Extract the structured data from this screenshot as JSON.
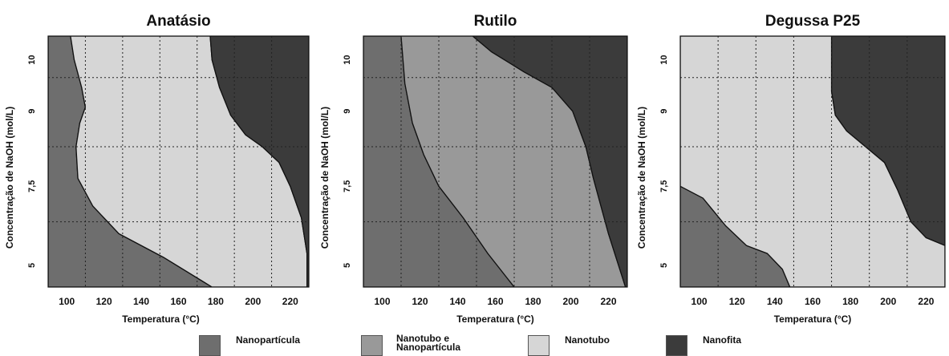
{
  "colors": {
    "Nanopartícula": "#6e6e6e",
    "Nanotubo e Nanopartícula": "#999999",
    "Nanotubo": "#d6d6d6",
    "Nanofita": "#3b3b3b"
  },
  "chart_data": [
    {
      "type": "area",
      "title": "Anatásio",
      "xlabel": "Temperatura (°C)",
      "ylabel": "Concentração de NaOH (mol/L)",
      "x_ticks": [
        "100",
        "120",
        "140",
        "160",
        "180",
        "200",
        "220"
      ],
      "y_ticks": [
        "5",
        "7,5",
        "9",
        "10"
      ],
      "xlim": [
        90,
        230
      ],
      "ylim": [
        4.45,
        10.8
      ],
      "grid": true,
      "regions": [
        {
          "phase": "Nanopartícula",
          "polygon": [
            [
              90,
              4.45
            ],
            [
              178,
              4.45
            ],
            [
              152,
              5.2
            ],
            [
              128,
              5.8
            ],
            [
              114,
              6.5
            ],
            [
              106,
              7.2
            ],
            [
              105,
              8.0
            ],
            [
              107,
              8.6
            ],
            [
              110,
              9.0
            ],
            [
              108,
              9.5
            ],
            [
              104,
              10.2
            ],
            [
              102,
              10.8
            ],
            [
              90,
              10.8
            ]
          ]
        },
        {
          "phase": "Nanotubo",
          "polygon": [
            [
              178,
              4.45
            ],
            [
              229,
              4.45
            ],
            [
              229,
              5.3
            ],
            [
              226,
              6.2
            ],
            [
              220,
              7.0
            ],
            [
              214,
              7.6
            ],
            [
              205,
              8.0
            ],
            [
              196,
              8.3
            ],
            [
              188,
              8.8
            ],
            [
              182,
              9.5
            ],
            [
              178,
              10.2
            ],
            [
              177,
              10.8
            ],
            [
              102,
              10.8
            ],
            [
              104,
              10.2
            ],
            [
              108,
              9.5
            ],
            [
              110,
              9.0
            ],
            [
              107,
              8.6
            ],
            [
              105,
              8.0
            ],
            [
              106,
              7.2
            ],
            [
              114,
              6.5
            ],
            [
              128,
              5.8
            ],
            [
              152,
              5.2
            ]
          ]
        },
        {
          "phase": "Nanofita",
          "polygon": [
            [
              229,
              4.45
            ],
            [
              230,
              4.45
            ],
            [
              230,
              10.8
            ],
            [
              177,
              10.8
            ],
            [
              178,
              10.2
            ],
            [
              182,
              9.5
            ],
            [
              188,
              8.8
            ],
            [
              196,
              8.3
            ],
            [
              205,
              8.0
            ],
            [
              214,
              7.6
            ],
            [
              220,
              7.0
            ],
            [
              226,
              6.2
            ],
            [
              229,
              5.3
            ]
          ]
        }
      ]
    },
    {
      "type": "area",
      "title": "Rutilo",
      "xlabel": "Temperatura (°C)",
      "ylabel": "Concentração de NaOH (mol/L)",
      "x_ticks": [
        "100",
        "120",
        "140",
        "160",
        "180",
        "200",
        "220"
      ],
      "y_ticks": [
        "5",
        "7,5",
        "9",
        "10"
      ],
      "xlim": [
        90,
        230
      ],
      "ylim": [
        4.45,
        10.8
      ],
      "grid": true,
      "regions": [
        {
          "phase": "Nanopartícula",
          "polygon": [
            [
              90,
              4.45
            ],
            [
              170,
              4.45
            ],
            [
              156,
              5.3
            ],
            [
              143,
              6.2
            ],
            [
              130,
              7.0
            ],
            [
              122,
              7.8
            ],
            [
              116,
              8.6
            ],
            [
              112,
              9.6
            ],
            [
              110,
              10.8
            ],
            [
              90,
              10.8
            ]
          ]
        },
        {
          "phase": "Nanotubo e Nanopartícula",
          "polygon": [
            [
              170,
              4.45
            ],
            [
              229,
              4.45
            ],
            [
              220,
              5.8
            ],
            [
              212,
              7.2
            ],
            [
              208,
              8.0
            ],
            [
              201,
              8.9
            ],
            [
              190,
              9.5
            ],
            [
              175,
              9.9
            ],
            [
              158,
              10.4
            ],
            [
              148,
              10.8
            ],
            [
              110,
              10.8
            ],
            [
              112,
              9.6
            ],
            [
              116,
              8.6
            ],
            [
              122,
              7.8
            ],
            [
              130,
              7.0
            ],
            [
              143,
              6.2
            ],
            [
              156,
              5.3
            ]
          ]
        },
        {
          "phase": "Nanofita",
          "polygon": [
            [
              229,
              4.45
            ],
            [
              230,
              4.45
            ],
            [
              230,
              10.8
            ],
            [
              148,
              10.8
            ],
            [
              158,
              10.4
            ],
            [
              175,
              9.9
            ],
            [
              190,
              9.5
            ],
            [
              201,
              8.9
            ],
            [
              208,
              8.0
            ],
            [
              212,
              7.2
            ],
            [
              220,
              5.8
            ]
          ]
        }
      ]
    },
    {
      "type": "area",
      "title": "Degussa P25",
      "xlabel": "Temperatura (°C)",
      "ylabel": "Concentração de NaOH (mol/L)",
      "x_ticks": [
        "100",
        "120",
        "140",
        "160",
        "180",
        "200",
        "220"
      ],
      "y_ticks": [
        "5",
        "7,5",
        "9",
        "10"
      ],
      "xlim": [
        90,
        230
      ],
      "ylim": [
        4.45,
        10.8
      ],
      "grid": true,
      "regions": [
        {
          "phase": "Nanopartícula",
          "polygon": [
            [
              90,
              4.45
            ],
            [
              148,
              4.45
            ],
            [
              144,
              4.9
            ],
            [
              136,
              5.3
            ],
            [
              125,
              5.5
            ],
            [
              114,
              6.0
            ],
            [
              102,
              6.7
            ],
            [
              90,
              7.0
            ]
          ]
        },
        {
          "phase": "Nanotubo",
          "polygon": [
            [
              90,
              7.0
            ],
            [
              102,
              6.7
            ],
            [
              114,
              6.0
            ],
            [
              125,
              5.5
            ],
            [
              136,
              5.3
            ],
            [
              144,
              4.9
            ],
            [
              148,
              4.45
            ],
            [
              230,
              4.45
            ],
            [
              230,
              5.5
            ],
            [
              220,
              5.7
            ],
            [
              212,
              6.1
            ],
            [
              205,
              6.9
            ],
            [
              198,
              7.6
            ],
            [
              188,
              8.0
            ],
            [
              178,
              8.4
            ],
            [
              172,
              8.8
            ],
            [
              170,
              9.4
            ],
            [
              170,
              10.8
            ],
            [
              90,
              10.8
            ]
          ]
        },
        {
          "phase": "Nanofita",
          "polygon": [
            [
              170,
              10.8
            ],
            [
              170,
              9.4
            ],
            [
              172,
              8.8
            ],
            [
              178,
              8.4
            ],
            [
              188,
              8.0
            ],
            [
              198,
              7.6
            ],
            [
              205,
              6.9
            ],
            [
              212,
              6.1
            ],
            [
              220,
              5.7
            ],
            [
              230,
              5.5
            ],
            [
              230,
              10.8
            ]
          ]
        }
      ]
    }
  ],
  "legend": [
    {
      "label": "Nanopartícula",
      "color_key": "Nanopartícula"
    },
    {
      "label": "Nanotubo e\nNanopartícula",
      "color_key": "Nanotubo e Nanopartícula"
    },
    {
      "label": "Nanotubo",
      "color_key": "Nanotubo"
    },
    {
      "label": "Nanofita",
      "color_key": "Nanofita"
    }
  ]
}
